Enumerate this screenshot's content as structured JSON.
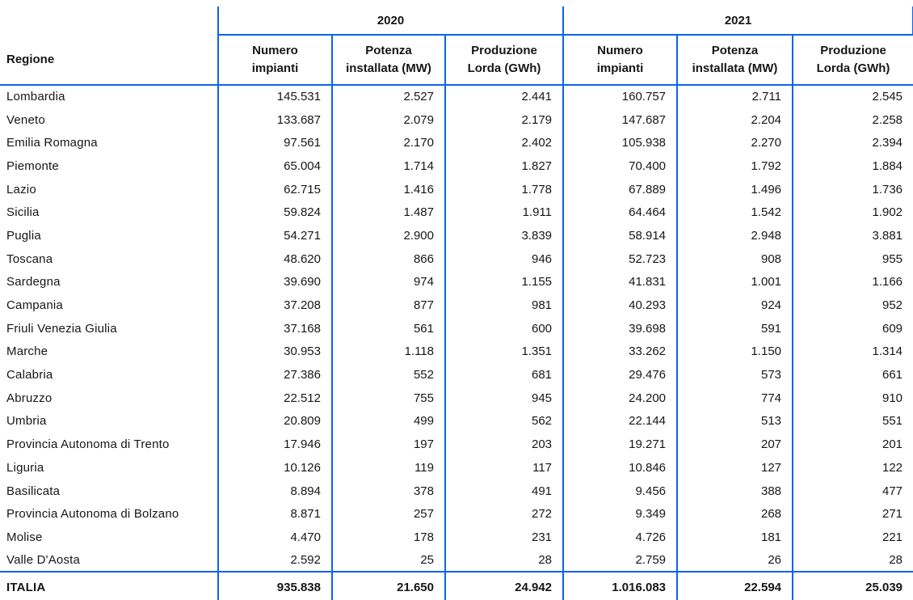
{
  "table": {
    "region_header": "Regione",
    "year_groups": [
      {
        "year": "2020",
        "columns": [
          "Numero\nimpianti",
          "Potenza\ninstallata (MW)",
          "Produzione\nLorda (GWh)"
        ]
      },
      {
        "year": "2021",
        "columns": [
          "Numero\nimpianti",
          "Potenza\ninstallata (MW)",
          "Produzione\nLorda (GWh)"
        ]
      }
    ],
    "rows": [
      {
        "region": "Lombardia",
        "values": [
          "145.531",
          "2.527",
          "2.441",
          "160.757",
          "2.711",
          "2.545"
        ]
      },
      {
        "region": "Veneto",
        "values": [
          "133.687",
          "2.079",
          "2.179",
          "147.687",
          "2.204",
          "2.258"
        ]
      },
      {
        "region": "Emilia Romagna",
        "values": [
          "97.561",
          "2.170",
          "2.402",
          "105.938",
          "2.270",
          "2.394"
        ]
      },
      {
        "region": "Piemonte",
        "values": [
          "65.004",
          "1.714",
          "1.827",
          "70.400",
          "1.792",
          "1.884"
        ]
      },
      {
        "region": "Lazio",
        "values": [
          "62.715",
          "1.416",
          "1.778",
          "67.889",
          "1.496",
          "1.736"
        ]
      },
      {
        "region": "Sicilia",
        "values": [
          "59.824",
          "1.487",
          "1.911",
          "64.464",
          "1.542",
          "1.902"
        ]
      },
      {
        "region": "Puglia",
        "values": [
          "54.271",
          "2.900",
          "3.839",
          "58.914",
          "2.948",
          "3.881"
        ]
      },
      {
        "region": "Toscana",
        "values": [
          "48.620",
          "866",
          "946",
          "52.723",
          "908",
          "955"
        ]
      },
      {
        "region": "Sardegna",
        "values": [
          "39.690",
          "974",
          "1.155",
          "41.831",
          "1.001",
          "1.166"
        ]
      },
      {
        "region": "Campania",
        "values": [
          "37.208",
          "877",
          "981",
          "40.293",
          "924",
          "952"
        ]
      },
      {
        "region": "Friuli Venezia Giulia",
        "values": [
          "37.168",
          "561",
          "600",
          "39.698",
          "591",
          "609"
        ]
      },
      {
        "region": "Marche",
        "values": [
          "30.953",
          "1.118",
          "1.351",
          "33.262",
          "1.150",
          "1.314"
        ]
      },
      {
        "region": "Calabria",
        "values": [
          "27.386",
          "552",
          "681",
          "29.476",
          "573",
          "661"
        ]
      },
      {
        "region": "Abruzzo",
        "values": [
          "22.512",
          "755",
          "945",
          "24.200",
          "774",
          "910"
        ]
      },
      {
        "region": "Umbria",
        "values": [
          "20.809",
          "499",
          "562",
          "22.144",
          "513",
          "551"
        ]
      },
      {
        "region": "Provincia Autonoma di Trento",
        "values": [
          "17.946",
          "197",
          "203",
          "19.271",
          "207",
          "201"
        ]
      },
      {
        "region": "Liguria",
        "values": [
          "10.126",
          "119",
          "117",
          "10.846",
          "127",
          "122"
        ]
      },
      {
        "region": "Basilicata",
        "values": [
          "8.894",
          "378",
          "491",
          "9.456",
          "388",
          "477"
        ]
      },
      {
        "region": "Provincia Autonoma di Bolzano",
        "values": [
          "8.871",
          "257",
          "272",
          "9.349",
          "268",
          "271"
        ]
      },
      {
        "region": "Molise",
        "values": [
          "4.470",
          "178",
          "231",
          "4.726",
          "181",
          "221"
        ]
      },
      {
        "region": "Valle D'Aosta",
        "values": [
          "2.592",
          "25",
          "28",
          "2.759",
          "26",
          "28"
        ]
      }
    ],
    "total": {
      "region": "ITALIA",
      "values": [
        "935.838",
        "21.650",
        "24.942",
        "1.016.083",
        "22.594",
        "25.039"
      ]
    },
    "border_color": "#0b64e8"
  }
}
